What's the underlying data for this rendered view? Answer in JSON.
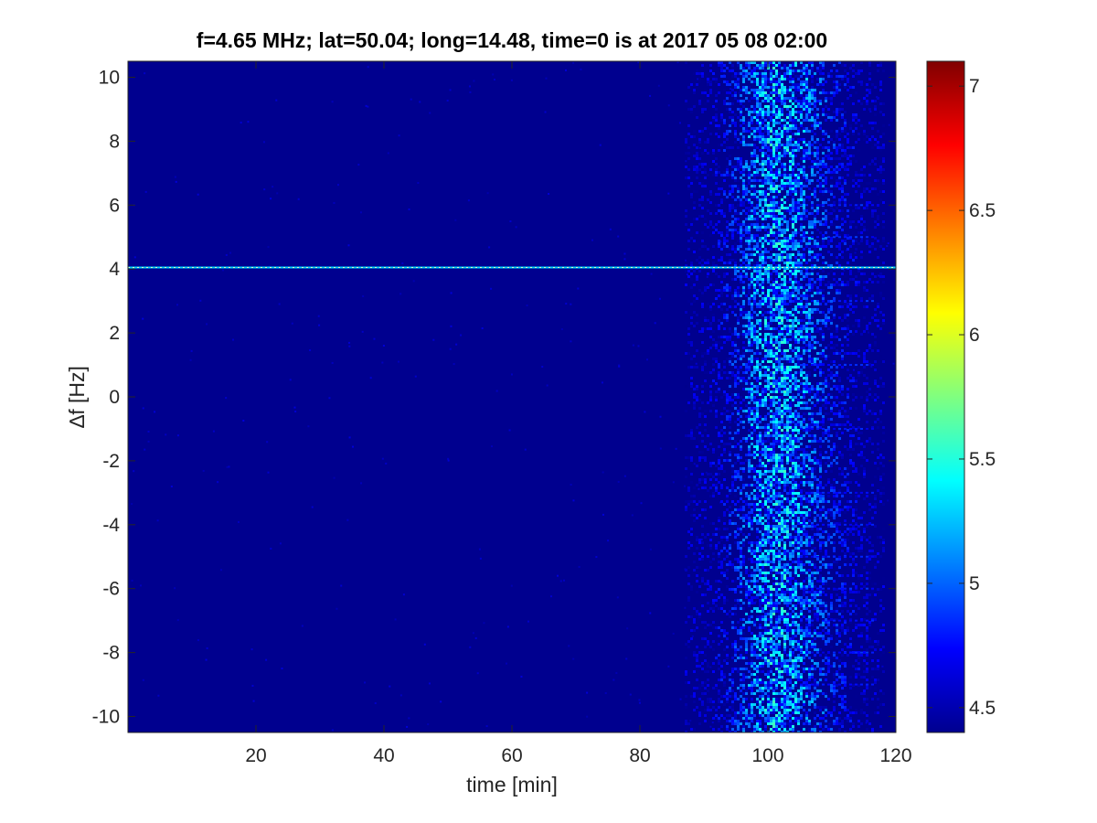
{
  "chart_data": {
    "type": "heatmap",
    "title": "f=4.65 MHz;  lat=50.04; long=14.48, time=0 is at 2017 05 08 02:00",
    "xlabel": "time [min]",
    "ylabel_symbol": "∆",
    "ylabel_rest": "f [Hz]",
    "xlim": [
      0,
      120
    ],
    "ylim": [
      -10.5,
      10.5
    ],
    "x_ticks": [
      20,
      40,
      60,
      80,
      100,
      120
    ],
    "x_tick_labels": [
      "20",
      "40",
      "60",
      "80",
      "100",
      "120"
    ],
    "y_ticks": [
      10,
      8,
      6,
      4,
      2,
      0,
      -2,
      -4,
      -6,
      -8,
      -10
    ],
    "y_tick_labels": [
      "10",
      "8",
      "6",
      "4",
      "2",
      "0",
      "-2",
      "-4",
      "-6",
      "-8",
      "-10"
    ],
    "colorbar": {
      "colormap": "jet",
      "clim": [
        4.4,
        7.1
      ],
      "ticks": [
        4.5,
        5,
        5.5,
        6,
        6.5,
        7
      ],
      "tick_labels": [
        "4.5",
        "5",
        "5.5",
        "6",
        "6.5",
        "7"
      ]
    },
    "background_level": 4.4,
    "features": [
      {
        "kind": "horizontal-line",
        "y": 4.05,
        "x_range": [
          0,
          120
        ],
        "level": 5.3
      },
      {
        "kind": "noise-band",
        "x_range": [
          87,
          118
        ],
        "peak_x": 101,
        "y_range": [
          -10.5,
          10.5
        ],
        "peak_level": 5.6
      },
      {
        "kind": "dashed-lines",
        "x_range": [
          105,
          117
        ],
        "y_values": [
          6,
          5,
          3,
          1,
          -1,
          -3,
          -4,
          -5,
          -6,
          -7,
          -8,
          -9
        ],
        "level": 4.9
      }
    ]
  }
}
